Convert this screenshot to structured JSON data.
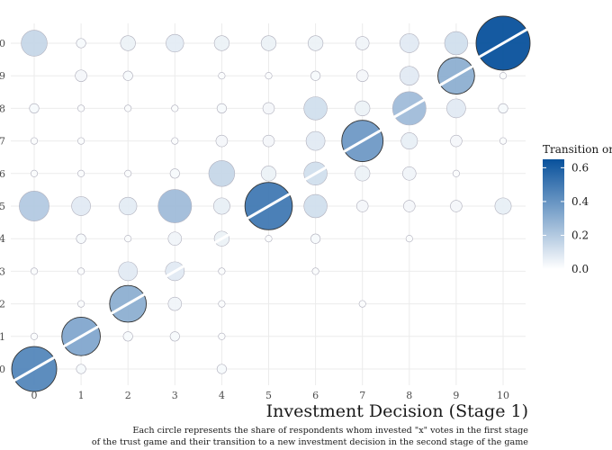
{
  "chart_data": {
    "type": "bubble",
    "x_label": "Investment Decision (Stage 1)",
    "x_categories": [
      0,
      1,
      2,
      3,
      4,
      5,
      6,
      7,
      8,
      9,
      10
    ],
    "y_categories": [
      0,
      1,
      2,
      3,
      4,
      5,
      6,
      7,
      8,
      9,
      10
    ],
    "y_tick_labels": [
      "0",
      "1",
      "2",
      "3",
      "4",
      "5",
      "6",
      "7",
      "8",
      "9",
      "10"
    ],
    "xlim": [
      -0.5,
      10.5
    ],
    "ylim": [
      -0.5,
      10.5
    ],
    "legend": {
      "title": "Transition on T",
      "ticks": [
        "0.0",
        "0.2",
        "0.4",
        "0.6"
      ],
      "range": [
        0.0,
        0.65
      ],
      "placement": "right",
      "color_low": "#ffffff",
      "color_high": "#08519c"
    },
    "grid": true,
    "diagonal_marker_color": "#ffffff",
    "caption_lines": [
      "Each circle represents the share of respondents whom invested \"x\" votes in  the first stage",
      "of the trust game and their transition to a new investment decision in the second stage of the game"
    ],
    "points": [
      {
        "x": 0,
        "y": 0,
        "v": 0.45
      },
      {
        "x": 0,
        "y": 5,
        "v": 0.2
      },
      {
        "x": 0,
        "y": 10,
        "v": 0.15
      },
      {
        "x": 0,
        "y": 8,
        "v": 0.02
      },
      {
        "x": 0,
        "y": 6,
        "v": 0.01
      },
      {
        "x": 0,
        "y": 7,
        "v": 0.01
      },
      {
        "x": 0,
        "y": 3,
        "v": 0.01
      },
      {
        "x": 0,
        "y": 1,
        "v": 0.01
      },
      {
        "x": 1,
        "y": 1,
        "v": 0.33
      },
      {
        "x": 1,
        "y": 5,
        "v": 0.08
      },
      {
        "x": 1,
        "y": 9,
        "v": 0.03
      },
      {
        "x": 1,
        "y": 0,
        "v": 0.02
      },
      {
        "x": 1,
        "y": 4,
        "v": 0.02
      },
      {
        "x": 1,
        "y": 10,
        "v": 0.02
      },
      {
        "x": 1,
        "y": 3,
        "v": 0.01
      },
      {
        "x": 1,
        "y": 7,
        "v": 0.01
      },
      {
        "x": 1,
        "y": 8,
        "v": 0.01
      },
      {
        "x": 1,
        "y": 6,
        "v": 0.01
      },
      {
        "x": 1,
        "y": 2,
        "v": 0.01
      },
      {
        "x": 2,
        "y": 2,
        "v": 0.3
      },
      {
        "x": 2,
        "y": 3,
        "v": 0.08
      },
      {
        "x": 2,
        "y": 5,
        "v": 0.07
      },
      {
        "x": 2,
        "y": 10,
        "v": 0.05
      },
      {
        "x": 2,
        "y": 1,
        "v": 0.02
      },
      {
        "x": 2,
        "y": 9,
        "v": 0.02
      },
      {
        "x": 2,
        "y": 8,
        "v": 0.01
      },
      {
        "x": 2,
        "y": 4,
        "v": 0.01
      },
      {
        "x": 2,
        "y": 6,
        "v": 0.01
      },
      {
        "x": 3,
        "y": 5,
        "v": 0.25
      },
      {
        "x": 3,
        "y": 3,
        "v": 0.08
      },
      {
        "x": 3,
        "y": 10,
        "v": 0.07
      },
      {
        "x": 3,
        "y": 2,
        "v": 0.04
      },
      {
        "x": 3,
        "y": 4,
        "v": 0.04
      },
      {
        "x": 3,
        "y": 6,
        "v": 0.02
      },
      {
        "x": 3,
        "y": 1,
        "v": 0.02
      },
      {
        "x": 3,
        "y": 7,
        "v": 0.01
      },
      {
        "x": 3,
        "y": 8,
        "v": 0.01
      },
      {
        "x": 4,
        "y": 6,
        "v": 0.15
      },
      {
        "x": 4,
        "y": 5,
        "v": 0.06
      },
      {
        "x": 4,
        "y": 4,
        "v": 0.05
      },
      {
        "x": 4,
        "y": 10,
        "v": 0.05
      },
      {
        "x": 4,
        "y": 7,
        "v": 0.03
      },
      {
        "x": 4,
        "y": 8,
        "v": 0.02
      },
      {
        "x": 4,
        "y": 3,
        "v": 0.01
      },
      {
        "x": 4,
        "y": 2,
        "v": 0.01
      },
      {
        "x": 4,
        "y": 1,
        "v": 0.01
      },
      {
        "x": 4,
        "y": 0,
        "v": 0.02
      },
      {
        "x": 4,
        "y": 9,
        "v": 0.01
      },
      {
        "x": 5,
        "y": 5,
        "v": 0.5
      },
      {
        "x": 5,
        "y": 6,
        "v": 0.05
      },
      {
        "x": 5,
        "y": 10,
        "v": 0.05
      },
      {
        "x": 5,
        "y": 7,
        "v": 0.03
      },
      {
        "x": 5,
        "y": 8,
        "v": 0.03
      },
      {
        "x": 5,
        "y": 4,
        "v": 0.01
      },
      {
        "x": 5,
        "y": 9,
        "v": 0.01
      },
      {
        "x": 6,
        "y": 6,
        "v": 0.12
      },
      {
        "x": 6,
        "y": 8,
        "v": 0.12
      },
      {
        "x": 6,
        "y": 5,
        "v": 0.12
      },
      {
        "x": 6,
        "y": 7,
        "v": 0.08
      },
      {
        "x": 6,
        "y": 10,
        "v": 0.05
      },
      {
        "x": 6,
        "y": 9,
        "v": 0.02
      },
      {
        "x": 6,
        "y": 4,
        "v": 0.02
      },
      {
        "x": 6,
        "y": 3,
        "v": 0.01
      },
      {
        "x": 7,
        "y": 7,
        "v": 0.38
      },
      {
        "x": 7,
        "y": 6,
        "v": 0.05
      },
      {
        "x": 7,
        "y": 8,
        "v": 0.05
      },
      {
        "x": 7,
        "y": 10,
        "v": 0.04
      },
      {
        "x": 7,
        "y": 9,
        "v": 0.03
      },
      {
        "x": 7,
        "y": 5,
        "v": 0.03
      },
      {
        "x": 7,
        "y": 2,
        "v": 0.01
      },
      {
        "x": 8,
        "y": 8,
        "v": 0.25
      },
      {
        "x": 8,
        "y": 9,
        "v": 0.08
      },
      {
        "x": 8,
        "y": 10,
        "v": 0.08
      },
      {
        "x": 8,
        "y": 7,
        "v": 0.06
      },
      {
        "x": 8,
        "y": 6,
        "v": 0.04
      },
      {
        "x": 8,
        "y": 5,
        "v": 0.03
      },
      {
        "x": 8,
        "y": 4,
        "v": 0.01
      },
      {
        "x": 9,
        "y": 9,
        "v": 0.3
      },
      {
        "x": 9,
        "y": 10,
        "v": 0.12
      },
      {
        "x": 9,
        "y": 8,
        "v": 0.08
      },
      {
        "x": 9,
        "y": 7,
        "v": 0.03
      },
      {
        "x": 9,
        "y": 5,
        "v": 0.03
      },
      {
        "x": 9,
        "y": 6,
        "v": 0.01
      },
      {
        "x": 10,
        "y": 10,
        "v": 0.65
      },
      {
        "x": 10,
        "y": 5,
        "v": 0.06
      },
      {
        "x": 10,
        "y": 8,
        "v": 0.02
      },
      {
        "x": 10,
        "y": 9,
        "v": 0.01
      },
      {
        "x": 10,
        "y": 7,
        "v": 0.01
      }
    ]
  }
}
